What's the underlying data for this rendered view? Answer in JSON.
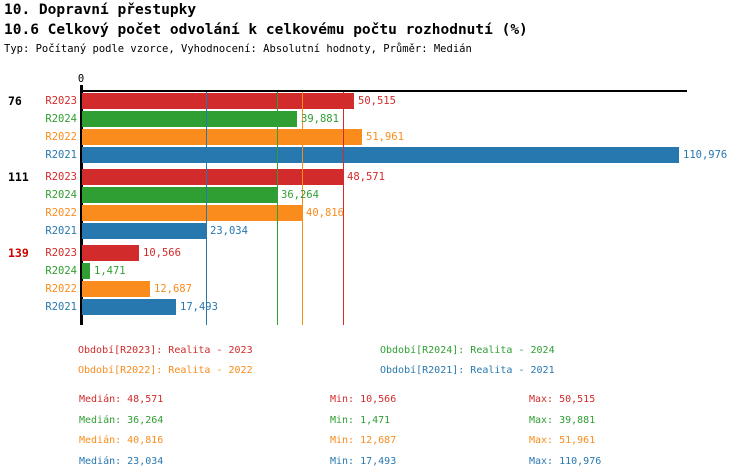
{
  "header": {
    "title": "10. Dopravní přestupky",
    "subtitle": "10.6 Celkový počet odvolání k celkovému počtu rozhodnutí (%)",
    "meta": "Typ: Počítaný podle vzorce, Vyhodnocení: Absolutní hodnoty, Průměr: Medián"
  },
  "chart_data": {
    "type": "bar",
    "orientation": "horizontal",
    "zero_label": "0",
    "xlim": [
      0,
      111
    ],
    "grid": "median-lines-per-series",
    "series_colors": {
      "R2023": "#d22b2b",
      "R2024": "#2f9e33",
      "R2022": "#f98c1c",
      "R2021": "#2878b0"
    },
    "groups": [
      {
        "label": "76",
        "label_color": "#000000",
        "bars": [
          {
            "series": "R2023",
            "value": 50.515,
            "display": "50,515"
          },
          {
            "series": "R2024",
            "value": 39.881,
            "display": "39,881"
          },
          {
            "series": "R2022",
            "value": 51.961,
            "display": "51,961"
          },
          {
            "series": "R2021",
            "value": 110.976,
            "display": "110,976"
          }
        ]
      },
      {
        "label": "111",
        "label_color": "#000000",
        "bars": [
          {
            "series": "R2023",
            "value": 48.571,
            "display": "48,571"
          },
          {
            "series": "R2024",
            "value": 36.264,
            "display": "36,264"
          },
          {
            "series": "R2022",
            "value": 40.816,
            "display": "40,816"
          },
          {
            "series": "R2021",
            "value": 23.034,
            "display": "23,034"
          }
        ]
      },
      {
        "label": "139",
        "label_color": "#cc0000",
        "bars": [
          {
            "series": "R2023",
            "value": 10.566,
            "display": "10,566"
          },
          {
            "series": "R2024",
            "value": 1.471,
            "display": "1,471"
          },
          {
            "series": "R2022",
            "value": 12.687,
            "display": "12,687"
          },
          {
            "series": "R2021",
            "value": 17.493,
            "display": "17,493"
          }
        ]
      }
    ],
    "median_lines": [
      {
        "series": "R2021",
        "value": 23.034
      },
      {
        "series": "R2024",
        "value": 36.264
      },
      {
        "series": "R2022",
        "value": 40.816
      },
      {
        "series": "R2023",
        "value": 48.571
      }
    ]
  },
  "legend": [
    {
      "series": "R2023",
      "text": "Období[R2023]: Realita - 2023",
      "row": 0,
      "col": 0
    },
    {
      "series": "R2024",
      "text": "Období[R2024]: Realita - 2024",
      "row": 0,
      "col": 1
    },
    {
      "series": "R2022",
      "text": "Období[R2022]: Realita - 2022",
      "row": 1,
      "col": 0
    },
    {
      "series": "R2021",
      "text": "Období[R2021]: Realita - 2021",
      "row": 1,
      "col": 1
    }
  ],
  "stats": {
    "labels": {
      "median": "Medián",
      "min": "Min",
      "max": "Max"
    },
    "rows": [
      {
        "series": "R2023",
        "median": "48,571",
        "min": "10,566",
        "max": "50,515"
      },
      {
        "series": "R2024",
        "median": "36,264",
        "min": "1,471",
        "max": "39,881"
      },
      {
        "series": "R2022",
        "median": "40,816",
        "min": "12,687",
        "max": "51,961"
      },
      {
        "series": "R2021",
        "median": "23,034",
        "min": "17,493",
        "max": "110,976"
      }
    ]
  }
}
